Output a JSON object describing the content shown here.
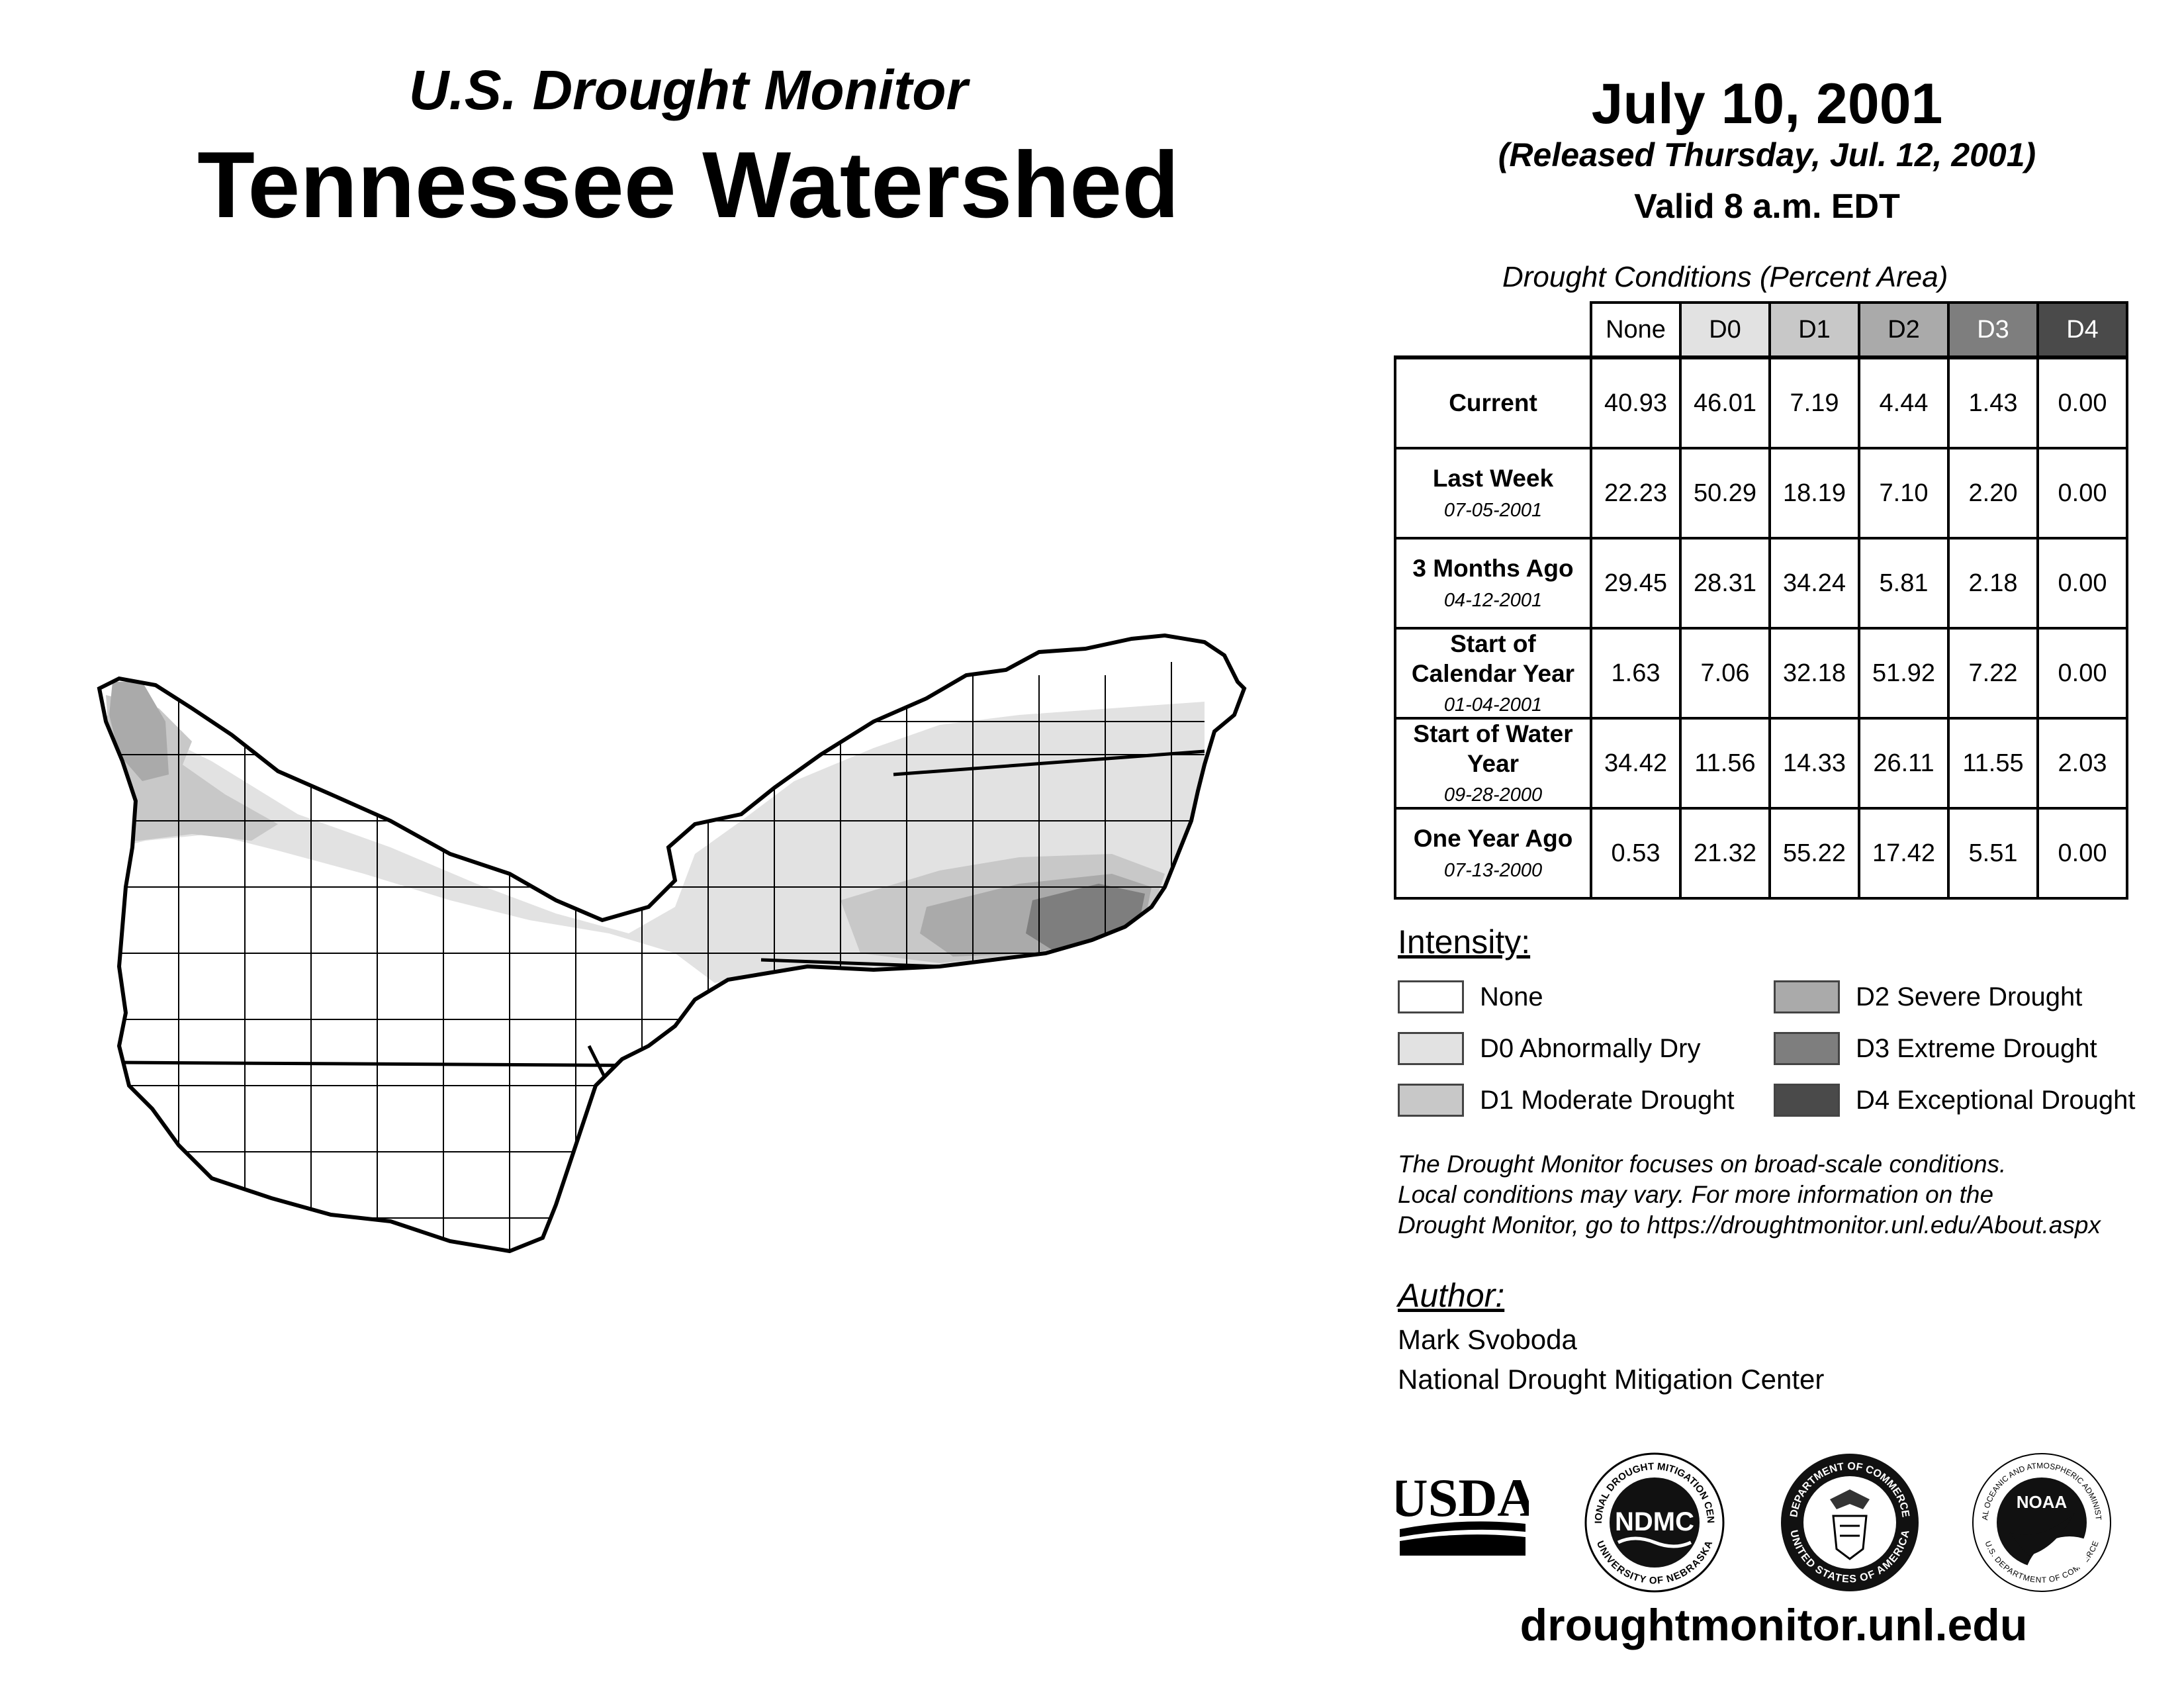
{
  "header": {
    "subtitle": "U.S. Drought Monitor",
    "title": "Tennessee Watershed",
    "date": "July 10, 2001",
    "released": "(Released Thursday, Jul. 12, 2001)",
    "valid": "Valid 8 a.m. EDT"
  },
  "table": {
    "caption": "Drought Conditions (Percent Area)",
    "columns": [
      "None",
      "D0",
      "D1",
      "D2",
      "D3",
      "D4"
    ],
    "rows": [
      {
        "label": "Current",
        "date": "",
        "values": [
          "40.93",
          "46.01",
          "7.19",
          "4.44",
          "1.43",
          "0.00"
        ]
      },
      {
        "label": "Last Week",
        "date": "07-05-2001",
        "values": [
          "22.23",
          "50.29",
          "18.19",
          "7.10",
          "2.20",
          "0.00"
        ]
      },
      {
        "label": "3 Months Ago",
        "date": "04-12-2001",
        "values": [
          "29.45",
          "28.31",
          "34.24",
          "5.81",
          "2.18",
          "0.00"
        ]
      },
      {
        "label": "Start of Calendar Year",
        "date": "01-04-2001",
        "values": [
          "1.63",
          "7.06",
          "32.18",
          "51.92",
          "7.22",
          "0.00"
        ]
      },
      {
        "label": "Start of Water Year",
        "date": "09-28-2000",
        "values": [
          "34.42",
          "11.56",
          "14.33",
          "26.11",
          "11.55",
          "2.03"
        ]
      },
      {
        "label": "One Year Ago",
        "date": "07-13-2000",
        "values": [
          "0.53",
          "21.32",
          "55.22",
          "17.42",
          "5.51",
          "0.00"
        ]
      }
    ]
  },
  "legend": {
    "label": "Intensity:",
    "items": [
      {
        "label": "None",
        "color": "#ffffff"
      },
      {
        "label": "D0 Abnormally Dry",
        "color": "#e2e2e2"
      },
      {
        "label": "D1 Moderate Drought",
        "color": "#c8c8c8"
      },
      {
        "label": "D2 Severe Drought",
        "color": "#aaaaaa"
      },
      {
        "label": "D3 Extreme Drought",
        "color": "#7e7e7e"
      },
      {
        "label": "D4 Exceptional Drought",
        "color": "#4a4a4a"
      }
    ]
  },
  "note": {
    "line1": "The Drought Monitor focuses on broad-scale conditions.",
    "line2": "Local conditions may vary. For more information on the",
    "line3": "Drought Monitor, go to https://droughtmonitor.unl.edu/About.aspx"
  },
  "author": {
    "label": "Author:",
    "name": "Mark Svoboda",
    "org": "National Drought Mitigation Center"
  },
  "logos": {
    "usda": "USDA",
    "ndmc": "NDMC",
    "ndmc_ring_top": "NATIONAL DROUGHT MITIGATION CENTER",
    "ndmc_ring_bottom": "UNIVERSITY OF NEBRASKA",
    "doc_ring_top": "DEPARTMENT OF COMMERCE",
    "doc_ring_bottom": "UNITED STATES OF AMERICA",
    "noaa": "NOAA",
    "noaa_ring_top": "NATIONAL OCEANIC AND ATMOSPHERIC ADMINISTRATION",
    "noaa_ring_bottom": "U.S. DEPARTMENT OF COMMERCE"
  },
  "url": "droughtmonitor.unl.edu"
}
